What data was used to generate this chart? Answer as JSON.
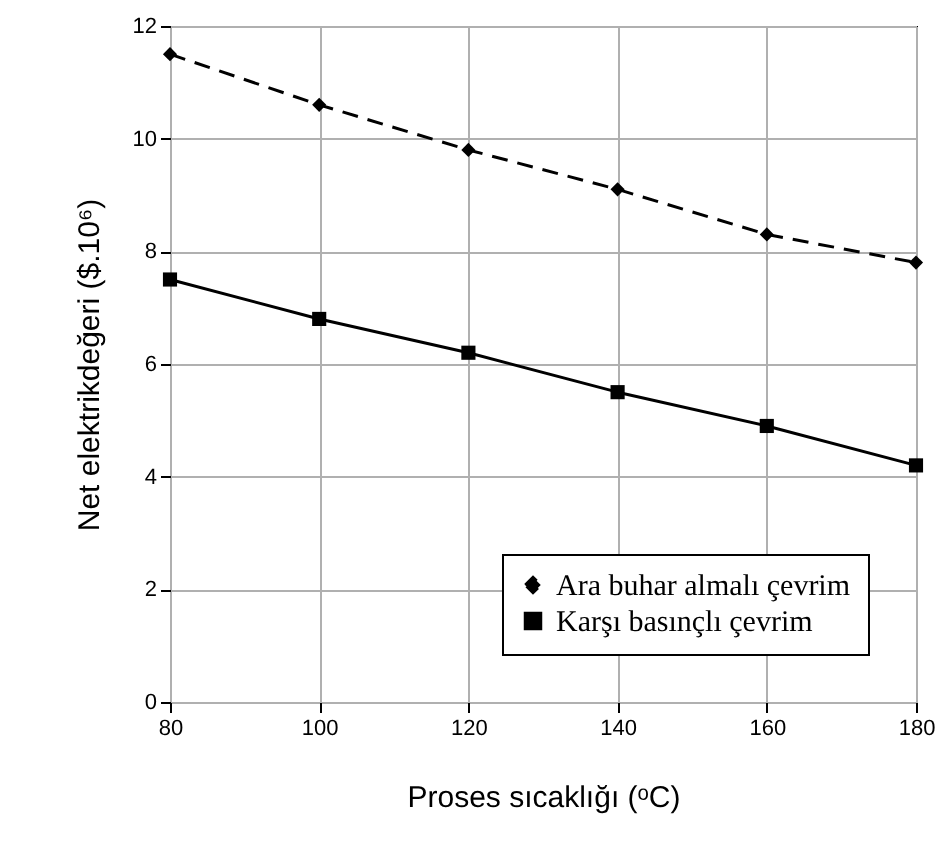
{
  "chart_data": {
    "type": "line",
    "xlabel": "Proses sıcaklığı (ᵒC)",
    "ylabel": "Net elektrikdeğeri ($.10⁶)",
    "x": [
      80,
      100,
      120,
      140,
      160,
      180
    ],
    "series": [
      {
        "name": "Ara buhar almalı çevrim",
        "color": "#000000",
        "line_style": "dashed",
        "marker": "diamond",
        "values": [
          11.5,
          10.6,
          9.8,
          9.1,
          8.3,
          7.8
        ]
      },
      {
        "name": "Karşı basınçlı çevrim",
        "color": "#000000",
        "line_style": "solid",
        "marker": "square",
        "values": [
          7.5,
          6.8,
          6.2,
          5.5,
          4.9,
          4.2
        ]
      }
    ],
    "xlim": [
      80,
      180
    ],
    "xticks": [
      80,
      100,
      120,
      140,
      160,
      180
    ],
    "ylim": [
      0,
      12
    ],
    "yticks": [
      0,
      2,
      4,
      6,
      8,
      10,
      12
    ],
    "grid": true,
    "legend": "bottom right"
  }
}
